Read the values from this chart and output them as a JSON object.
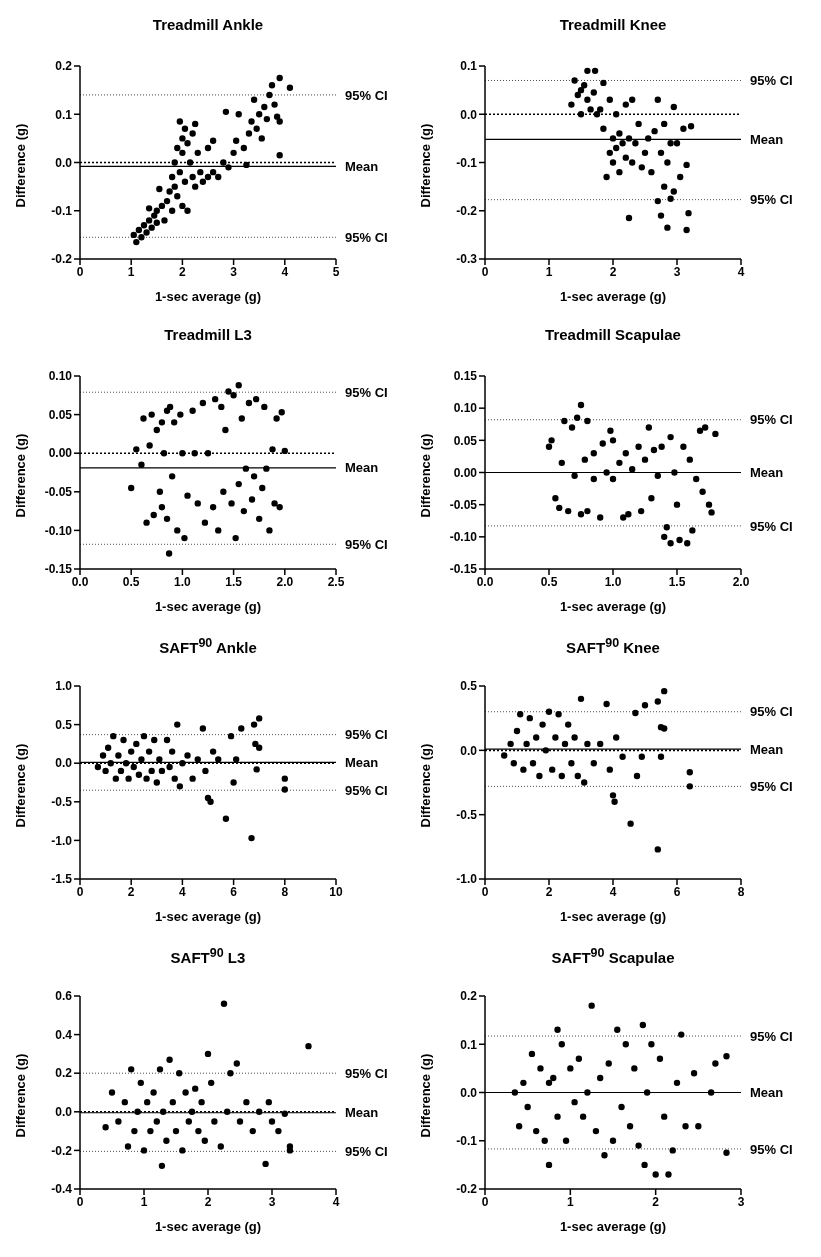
{
  "chart_data": [
    {
      "type": "scatter",
      "title": "Treadmill Ankle",
      "xlabel": "1-sec average (g)",
      "ylabel": "Difference (g)",
      "marker": "circle",
      "color": "#000000",
      "xlim": [
        0,
        5
      ],
      "xticks": [
        0,
        1,
        2,
        3,
        4,
        5
      ],
      "ylim": [
        -0.2,
        0.2
      ],
      "yticks": [
        -0.2,
        -0.1,
        {
          "value": 0,
          "label": "0.0"
        },
        0.1,
        0.2
      ],
      "ref_lines": [
        {
          "axis": "y",
          "value": 0.14,
          "label": "95% CI",
          "line_style": "dotted"
        },
        {
          "axis": "y",
          "value": 0,
          "label": null,
          "line_style": "dashed"
        },
        {
          "axis": "y",
          "value": -0.008,
          "label": "Mean",
          "line_style": "solid"
        },
        {
          "axis": "y",
          "value": -0.155,
          "label": "95% CI",
          "line_style": "dotted"
        }
      ],
      "x": [
        1.05,
        1.1,
        1.15,
        1.2,
        1.25,
        1.3,
        1.35,
        1.35,
        1.4,
        1.45,
        1.5,
        1.5,
        1.55,
        1.6,
        1.65,
        1.7,
        1.75,
        1.8,
        1.8,
        1.85,
        1.85,
        1.9,
        1.9,
        1.95,
        1.95,
        2.0,
        2.0,
        2.0,
        2.05,
        2.05,
        2.1,
        2.1,
        2.15,
        2.2,
        2.2,
        2.25,
        2.25,
        2.3,
        2.35,
        2.4,
        2.5,
        2.5,
        2.6,
        2.6,
        2.7,
        2.8,
        2.85,
        2.9,
        3.0,
        3.05,
        3.1,
        3.2,
        3.25,
        3.3,
        3.35,
        3.4,
        3.45,
        3.5,
        3.55,
        3.6,
        3.65,
        3.7,
        3.75,
        3.8,
        3.85,
        3.9,
        3.9,
        3.9,
        4.1
      ],
      "values": [
        -0.15,
        -0.165,
        -0.14,
        -0.155,
        -0.13,
        -0.145,
        -0.12,
        -0.095,
        -0.135,
        -0.11,
        -0.125,
        -0.1,
        -0.055,
        -0.09,
        -0.12,
        -0.08,
        -0.06,
        -0.1,
        -0.03,
        -0.05,
        0.0,
        -0.07,
        0.03,
        0.085,
        -0.02,
        0.05,
        -0.09,
        0.02,
        0.07,
        -0.04,
        0.04,
        -0.1,
        0.0,
        0.06,
        -0.03,
        0.08,
        -0.05,
        0.02,
        -0.02,
        -0.04,
        0.03,
        -0.03,
        0.045,
        -0.02,
        -0.03,
        0.0,
        0.105,
        -0.01,
        0.02,
        0.045,
        0.1,
        0.03,
        -0.005,
        0.06,
        0.085,
        0.13,
        0.07,
        0.1,
        0.05,
        0.115,
        0.09,
        0.14,
        0.16,
        0.12,
        0.095,
        0.175,
        0.015,
        0.085,
        0.155
      ]
    },
    {
      "type": "scatter",
      "title": "Treadmill Knee",
      "xlabel": "1-sec average (g)",
      "ylabel": "Difference (g)",
      "marker": "circle",
      "color": "#000000",
      "xlim": [
        0,
        4
      ],
      "xticks": [
        0,
        1,
        2,
        3,
        4
      ],
      "ylim": [
        -0.3,
        0.1
      ],
      "yticks": [
        -0.3,
        -0.2,
        -0.1,
        {
          "value": 0,
          "label": "0.0"
        },
        0.1
      ],
      "ref_lines": [
        {
          "axis": "y",
          "value": 0.07,
          "label": "95% CI",
          "line_style": "dotted"
        },
        {
          "axis": "y",
          "value": 0,
          "label": null,
          "line_style": "dashed"
        },
        {
          "axis": "y",
          "value": -0.052,
          "label": "Mean",
          "line_style": "solid"
        },
        {
          "axis": "y",
          "value": -0.177,
          "label": "95% CI",
          "line_style": "dotted"
        }
      ],
      "x": [
        1.35,
        1.4,
        1.45,
        1.5,
        1.5,
        1.55,
        1.6,
        1.6,
        1.65,
        1.7,
        1.72,
        1.75,
        1.8,
        1.85,
        1.85,
        1.9,
        1.95,
        1.95,
        2.0,
        2.0,
        2.05,
        2.05,
        2.1,
        2.1,
        2.15,
        2.2,
        2.2,
        2.25,
        2.25,
        2.3,
        2.3,
        2.35,
        2.4,
        2.45,
        2.5,
        2.55,
        2.6,
        2.65,
        2.7,
        2.7,
        2.75,
        2.75,
        2.8,
        2.8,
        2.85,
        2.85,
        2.9,
        2.9,
        2.95,
        2.95,
        3.0,
        3.05,
        3.1,
        3.15,
        3.15,
        3.18,
        3.22
      ],
      "values": [
        0.02,
        0.07,
        0.04,
        0.0,
        0.05,
        0.06,
        0.09,
        0.03,
        0.01,
        0.045,
        0.09,
        0.0,
        0.01,
        0.065,
        -0.03,
        -0.13,
        0.03,
        -0.08,
        -0.1,
        -0.05,
        0.0,
        -0.07,
        -0.12,
        -0.04,
        -0.06,
        -0.09,
        0.02,
        -0.215,
        -0.05,
        0.03,
        -0.1,
        -0.06,
        -0.02,
        -0.11,
        -0.08,
        -0.05,
        -0.12,
        -0.035,
        0.03,
        -0.18,
        -0.08,
        -0.21,
        -0.15,
        -0.02,
        -0.235,
        -0.1,
        -0.175,
        -0.06,
        0.015,
        -0.16,
        -0.06,
        -0.13,
        -0.03,
        -0.105,
        -0.24,
        -0.205,
        -0.025
      ]
    },
    {
      "type": "scatter",
      "title": "Treadmill L3",
      "xlabel": "1-sec average (g)",
      "ylabel": "Difference (g)",
      "marker": "circle",
      "color": "#000000",
      "xlim": [
        0,
        2.5
      ],
      "xticks": [
        {
          "value": 0,
          "label": "0.0"
        },
        0.5,
        {
          "value": 1,
          "label": "1.0"
        },
        1.5,
        {
          "value": 2,
          "label": "2.0"
        },
        2.5
      ],
      "ylim": [
        -0.15,
        0.1
      ],
      "yticks": [
        -0.15,
        {
          "value": -0.1,
          "label": "-0.10"
        },
        -0.05,
        {
          "value": 0,
          "label": "0.00"
        },
        0.05,
        {
          "value": 0.1,
          "label": "0.10"
        }
      ],
      "ref_lines": [
        {
          "axis": "y",
          "value": 0.079,
          "label": "95% CI",
          "line_style": "dotted"
        },
        {
          "axis": "y",
          "value": 0,
          "label": null,
          "line_style": "dashed"
        },
        {
          "axis": "y",
          "value": -0.019,
          "label": "Mean",
          "line_style": "solid"
        },
        {
          "axis": "y",
          "value": -0.118,
          "label": "95% CI",
          "line_style": "dotted"
        }
      ],
      "x": [
        0.5,
        0.55,
        0.6,
        0.62,
        0.65,
        0.68,
        0.7,
        0.72,
        0.75,
        0.78,
        0.8,
        0.8,
        0.82,
        0.85,
        0.85,
        0.87,
        0.88,
        0.9,
        0.92,
        0.95,
        0.98,
        1.0,
        1.02,
        1.05,
        1.1,
        1.12,
        1.15,
        1.2,
        1.22,
        1.25,
        1.3,
        1.32,
        1.35,
        1.38,
        1.4,
        1.42,
        1.45,
        1.48,
        1.5,
        1.52,
        1.55,
        1.55,
        1.58,
        1.6,
        1.62,
        1.65,
        1.68,
        1.7,
        1.72,
        1.75,
        1.78,
        1.8,
        1.82,
        1.85,
        1.88,
        1.9,
        1.92,
        1.95,
        1.97,
        2.0
      ],
      "values": [
        -0.045,
        0.005,
        -0.015,
        0.045,
        -0.09,
        0.01,
        0.05,
        -0.08,
        0.03,
        -0.05,
        0.04,
        -0.07,
        0.0,
        0.055,
        -0.085,
        -0.13,
        0.06,
        -0.03,
        0.04,
        -0.1,
        0.05,
        0.0,
        -0.11,
        -0.055,
        0.055,
        0.0,
        -0.065,
        0.065,
        -0.09,
        0.0,
        -0.07,
        0.07,
        -0.1,
        0.06,
        -0.05,
        0.03,
        0.08,
        -0.065,
        0.075,
        -0.11,
        0.088,
        -0.04,
        0.045,
        -0.075,
        -0.02,
        0.065,
        -0.06,
        -0.03,
        0.07,
        -0.085,
        -0.045,
        0.06,
        -0.02,
        -0.1,
        0.005,
        -0.065,
        0.045,
        -0.07,
        0.053,
        0.003
      ]
    },
    {
      "type": "scatter",
      "title": "Treadmill Scapulae",
      "xlabel": "1-sec average (g)",
      "ylabel": "Difference (g)",
      "marker": "circle",
      "color": "#000000",
      "xlim": [
        0,
        2
      ],
      "xticks": [
        {
          "value": 0,
          "label": "0.0"
        },
        0.5,
        {
          "value": 1,
          "label": "1.0"
        },
        1.5,
        {
          "value": 2,
          "label": "2.0"
        }
      ],
      "ylim": [
        -0.15,
        0.15
      ],
      "yticks": [
        -0.15,
        {
          "value": -0.1,
          "label": "-0.10"
        },
        -0.05,
        {
          "value": 0,
          "label": "0.00"
        },
        0.05,
        {
          "value": 0.1,
          "label": "0.10"
        },
        0.15
      ],
      "ref_lines": [
        {
          "axis": "y",
          "value": 0.082,
          "label": "95% CI",
          "line_style": "dotted"
        },
        {
          "axis": "y",
          "value": 0,
          "label": "Mean",
          "line_style": "solid"
        },
        {
          "axis": "y",
          "value": -0.083,
          "label": "95% CI",
          "line_style": "dotted"
        }
      ],
      "x": [
        0.5,
        0.52,
        0.55,
        0.58,
        0.6,
        0.62,
        0.65,
        0.68,
        0.7,
        0.72,
        0.75,
        0.75,
        0.78,
        0.8,
        0.8,
        0.85,
        0.85,
        0.9,
        0.92,
        0.95,
        0.98,
        1.0,
        1.0,
        1.05,
        1.08,
        1.1,
        1.12,
        1.15,
        1.2,
        1.22,
        1.25,
        1.28,
        1.3,
        1.32,
        1.35,
        1.38,
        1.4,
        1.42,
        1.45,
        1.45,
        1.48,
        1.5,
        1.52,
        1.55,
        1.58,
        1.6,
        1.62,
        1.65,
        1.68,
        1.7,
        1.72,
        1.75,
        1.77,
        1.8
      ],
      "values": [
        0.04,
        0.05,
        -0.04,
        -0.055,
        0.015,
        0.08,
        -0.06,
        0.07,
        -0.005,
        0.085,
        0.105,
        -0.065,
        0.02,
        0.08,
        -0.06,
        0.03,
        -0.01,
        -0.07,
        0.045,
        0.0,
        0.065,
        -0.01,
        0.05,
        0.015,
        -0.07,
        0.03,
        -0.065,
        0.005,
        0.04,
        -0.06,
        0.02,
        0.07,
        -0.04,
        0.035,
        -0.005,
        0.04,
        -0.1,
        -0.085,
        0.055,
        -0.11,
        0.0,
        -0.05,
        -0.105,
        0.04,
        -0.11,
        0.02,
        -0.09,
        -0.01,
        0.065,
        -0.03,
        0.07,
        -0.05,
        -0.062,
        0.06
      ]
    },
    {
      "type": "scatter",
      "title": "SAFT$^{90}$ Ankle",
      "xlabel": "1-sec average (g)",
      "ylabel": "Difference (g)",
      "marker": "circle",
      "color": "#000000",
      "xlim": [
        0,
        10
      ],
      "xticks": [
        0,
        2,
        4,
        6,
        8,
        10
      ],
      "ylim": [
        -1.5,
        1
      ],
      "yticks": [
        -1.5,
        {
          "value": -1,
          "label": "-1.0"
        },
        -0.5,
        {
          "value": 0,
          "label": "0.0"
        },
        0.5,
        {
          "value": 1,
          "label": "1.0"
        }
      ],
      "ref_lines": [
        {
          "axis": "y",
          "value": 0.37,
          "label": "95% CI",
          "line_style": "dotted"
        },
        {
          "axis": "y",
          "value": 0,
          "label": null,
          "line_style": "dashed"
        },
        {
          "axis": "y",
          "value": 0.01,
          "label": "Mean",
          "line_style": "solid"
        },
        {
          "axis": "y",
          "value": -0.35,
          "label": "95% CI",
          "line_style": "dotted"
        }
      ],
      "x": [
        0.7,
        0.9,
        1.0,
        1.1,
        1.2,
        1.3,
        1.4,
        1.5,
        1.6,
        1.7,
        1.8,
        1.9,
        2.0,
        2.1,
        2.2,
        2.3,
        2.4,
        2.5,
        2.6,
        2.7,
        2.8,
        2.9,
        3.0,
        3.1,
        3.2,
        3.4,
        3.5,
        3.6,
        3.7,
        3.8,
        3.9,
        4.0,
        4.2,
        4.4,
        4.6,
        4.8,
        4.9,
        5.0,
        5.1,
        5.2,
        5.4,
        5.7,
        5.9,
        6.0,
        6.1,
        6.3,
        6.7,
        6.8,
        6.85,
        6.9,
        7.0,
        7.0,
        8.0,
        8.0
      ],
      "values": [
        -0.05,
        0.1,
        -0.1,
        0.2,
        0.0,
        0.35,
        -0.2,
        0.1,
        -0.1,
        0.3,
        0.0,
        -0.2,
        0.15,
        -0.05,
        0.25,
        -0.15,
        0.05,
        0.35,
        -0.2,
        0.15,
        -0.1,
        0.3,
        -0.25,
        0.05,
        -0.1,
        0.3,
        -0.05,
        0.15,
        -0.2,
        0.5,
        -0.3,
        0.0,
        0.1,
        -0.2,
        0.05,
        0.45,
        -0.1,
        -0.45,
        -0.5,
        0.15,
        0.05,
        -0.72,
        0.35,
        -0.25,
        0.05,
        0.45,
        -0.97,
        0.5,
        0.25,
        -0.08,
        0.58,
        0.2,
        -0.2,
        -0.34
      ]
    },
    {
      "type": "scatter",
      "title": "SAFT$^{90}$ Knee",
      "xlabel": "1-sec average (g)",
      "ylabel": "Difference (g)",
      "marker": "circle",
      "color": "#000000",
      "xlim": [
        0,
        8
      ],
      "xticks": [
        0,
        2,
        4,
        6,
        8
      ],
      "ylim": [
        -1,
        0.5
      ],
      "yticks": [
        {
          "value": -1,
          "label": "-1.0"
        },
        -0.5,
        {
          "value": 0,
          "label": "0.0"
        },
        0.5
      ],
      "ref_lines": [
        {
          "axis": "y",
          "value": 0.3,
          "label": "95% CI",
          "line_style": "dotted"
        },
        {
          "axis": "y",
          "value": 0,
          "label": null,
          "line_style": "dashed"
        },
        {
          "axis": "y",
          "value": 0.01,
          "label": "Mean",
          "line_style": "solid"
        },
        {
          "axis": "y",
          "value": -0.28,
          "label": "95% CI",
          "line_style": "dotted"
        }
      ],
      "x": [
        0.6,
        0.8,
        0.9,
        1.0,
        1.1,
        1.2,
        1.3,
        1.4,
        1.5,
        1.6,
        1.7,
        1.8,
        1.9,
        2.0,
        2.1,
        2.2,
        2.3,
        2.4,
        2.5,
        2.6,
        2.7,
        2.8,
        2.9,
        3.0,
        3.1,
        3.2,
        3.4,
        3.6,
        3.8,
        3.9,
        4.0,
        4.05,
        4.1,
        4.3,
        4.55,
        4.7,
        4.75,
        4.9,
        5.0,
        5.4,
        5.4,
        5.5,
        5.5,
        5.6,
        5.6,
        6.4,
        6.4
      ],
      "values": [
        -0.04,
        0.05,
        -0.1,
        0.15,
        0.28,
        -0.15,
        0.05,
        0.25,
        -0.1,
        0.1,
        -0.2,
        0.2,
        0.0,
        0.3,
        -0.15,
        0.1,
        0.28,
        -0.2,
        0.05,
        0.2,
        -0.1,
        0.1,
        -0.2,
        0.4,
        -0.25,
        0.05,
        -0.1,
        0.05,
        0.36,
        -0.15,
        -0.35,
        -0.4,
        0.1,
        -0.05,
        -0.57,
        0.29,
        -0.2,
        -0.05,
        0.35,
        -0.77,
        0.38,
        0.18,
        -0.05,
        0.17,
        0.46,
        -0.17,
        -0.28
      ]
    },
    {
      "type": "scatter",
      "title": "SAFT$^{90}$ L3",
      "xlabel": "1-sec average (g)",
      "ylabel": "Difference (g)",
      "marker": "circle",
      "color": "#000000",
      "xlim": [
        0,
        4
      ],
      "xticks": [
        0,
        1,
        2,
        3,
        4
      ],
      "ylim": [
        -0.4,
        0.6
      ],
      "yticks": [
        -0.4,
        -0.2,
        {
          "value": 0,
          "label": "0.0"
        },
        0.2,
        0.4,
        0.6
      ],
      "ref_lines": [
        {
          "axis": "y",
          "value": 0.2,
          "label": "95% CI",
          "line_style": "dotted"
        },
        {
          "axis": "y",
          "value": 0,
          "label": null,
          "line_style": "dashed"
        },
        {
          "axis": "y",
          "value": -0.005,
          "label": "Mean",
          "line_style": "solid"
        },
        {
          "axis": "y",
          "value": -0.205,
          "label": "95% CI",
          "line_style": "dotted"
        }
      ],
      "x": [
        0.4,
        0.5,
        0.6,
        0.7,
        0.75,
        0.8,
        0.85,
        0.9,
        0.95,
        1.0,
        1.05,
        1.1,
        1.15,
        1.2,
        1.25,
        1.28,
        1.3,
        1.35,
        1.4,
        1.45,
        1.5,
        1.55,
        1.6,
        1.65,
        1.7,
        1.75,
        1.8,
        1.85,
        1.9,
        1.95,
        2.0,
        2.05,
        2.1,
        2.2,
        2.25,
        2.3,
        2.35,
        2.45,
        2.5,
        2.6,
        2.7,
        2.8,
        2.9,
        2.95,
        3.0,
        3.1,
        3.2,
        3.28,
        3.28,
        3.57
      ],
      "values": [
        -0.08,
        0.1,
        -0.05,
        0.05,
        -0.18,
        0.22,
        -0.1,
        0.0,
        0.15,
        -0.2,
        0.05,
        -0.1,
        0.1,
        -0.05,
        0.22,
        -0.28,
        0.0,
        -0.15,
        0.27,
        0.05,
        -0.1,
        0.2,
        -0.2,
        0.1,
        -0.05,
        0.0,
        0.12,
        -0.1,
        0.05,
        -0.15,
        0.3,
        0.15,
        -0.05,
        -0.18,
        0.56,
        0.0,
        0.2,
        0.25,
        -0.05,
        0.05,
        -0.1,
        0.0,
        -0.27,
        0.05,
        -0.05,
        -0.1,
        -0.01,
        -0.18,
        -0.2,
        0.34
      ]
    },
    {
      "type": "scatter",
      "title": "SAFT$^{90}$ Scapulae",
      "xlabel": "1-sec average (g)",
      "ylabel": "Difference (g)",
      "marker": "circle",
      "color": "#000000",
      "xlim": [
        0,
        3
      ],
      "xticks": [
        0,
        1,
        2,
        3
      ],
      "ylim": [
        -0.2,
        0.2
      ],
      "yticks": [
        -0.2,
        -0.1,
        {
          "value": 0,
          "label": "0.0"
        },
        0.1,
        0.2
      ],
      "ref_lines": [
        {
          "axis": "y",
          "value": 0.117,
          "label": "95% CI",
          "line_style": "dotted"
        },
        {
          "axis": "y",
          "value": 0,
          "label": "Mean",
          "line_style": "solid"
        },
        {
          "axis": "y",
          "value": -0.117,
          "label": "95% CI",
          "line_style": "dotted"
        }
      ],
      "x": [
        0.35,
        0.4,
        0.45,
        0.5,
        0.55,
        0.6,
        0.65,
        0.7,
        0.75,
        0.75,
        0.8,
        0.85,
        0.85,
        0.9,
        0.95,
        1.0,
        1.05,
        1.1,
        1.15,
        1.2,
        1.25,
        1.3,
        1.35,
        1.4,
        1.45,
        1.5,
        1.55,
        1.6,
        1.65,
        1.7,
        1.75,
        1.8,
        1.85,
        1.87,
        1.9,
        1.95,
        2.0,
        2.05,
        2.1,
        2.15,
        2.2,
        2.25,
        2.3,
        2.35,
        2.45,
        2.5,
        2.65,
        2.7,
        2.83,
        2.83
      ],
      "values": [
        0.0,
        -0.07,
        0.02,
        -0.03,
        0.08,
        -0.08,
        0.05,
        -0.1,
        -0.15,
        0.02,
        0.03,
        0.13,
        -0.05,
        0.1,
        -0.1,
        0.05,
        -0.02,
        0.07,
        -0.05,
        0.0,
        0.18,
        -0.08,
        0.03,
        -0.13,
        0.06,
        -0.1,
        0.13,
        -0.03,
        0.1,
        -0.07,
        0.05,
        -0.11,
        0.14,
        -0.15,
        0.0,
        0.1,
        -0.17,
        0.07,
        -0.05,
        -0.17,
        -0.12,
        0.02,
        0.12,
        -0.07,
        0.04,
        -0.07,
        0.0,
        0.06,
        0.075,
        -0.125
      ]
    }
  ]
}
